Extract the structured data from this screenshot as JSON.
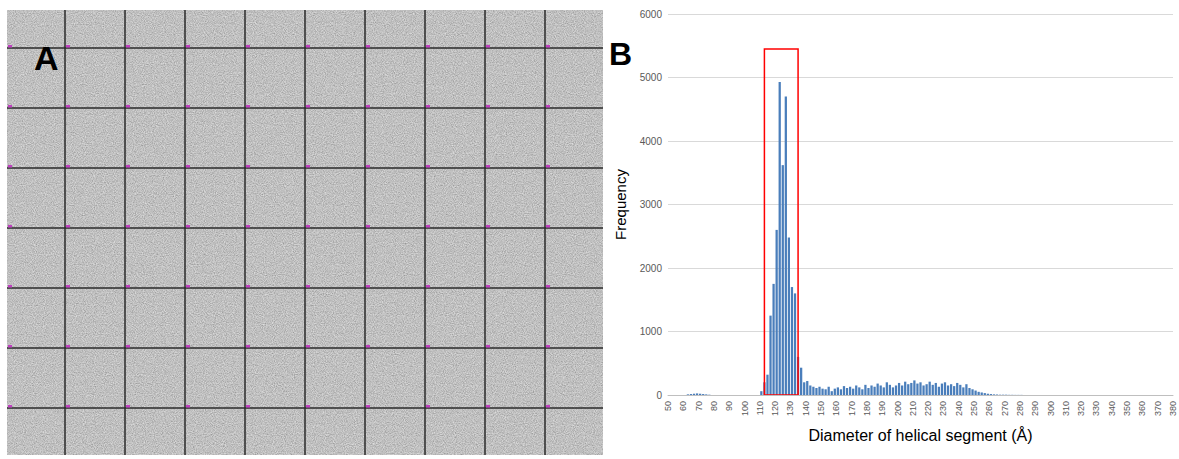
{
  "panel_labels": {
    "a": "A",
    "b": "B"
  },
  "chart_data": {
    "type": "histogram",
    "x_label": "Diameter of helical segment (Å)",
    "y_label": "Frequency",
    "color": "#4a7ebb",
    "bins": [
      60,
      62,
      64,
      66,
      68,
      70,
      72,
      74,
      76,
      78,
      80,
      82,
      84,
      86,
      88,
      90,
      92,
      94,
      96,
      98,
      100,
      102,
      104,
      106,
      108,
      110,
      112,
      114,
      116,
      118,
      120,
      122,
      124,
      126,
      128,
      130,
      132,
      134,
      136,
      138,
      140,
      142,
      144,
      146,
      148,
      150,
      152,
      154,
      156,
      158,
      160,
      162,
      164,
      166,
      168,
      170,
      172,
      174,
      176,
      178,
      180,
      182,
      184,
      186,
      188,
      190,
      192,
      194,
      196,
      198,
      200,
      202,
      204,
      206,
      208,
      210,
      212,
      214,
      216,
      218,
      220,
      222,
      224,
      226,
      228,
      230,
      232,
      234,
      236,
      238,
      240,
      242,
      244,
      246,
      248,
      250,
      252,
      254,
      256,
      258,
      260,
      262,
      264,
      266,
      268,
      270,
      272,
      274,
      276,
      278,
      280,
      282,
      284
    ],
    "counts": [
      0,
      10,
      15,
      20,
      25,
      20,
      15,
      10,
      5,
      0,
      0,
      0,
      0,
      0,
      0,
      0,
      0,
      0,
      0,
      0,
      0,
      0,
      0,
      0,
      0,
      60,
      200,
      320,
      1250,
      1750,
      2600,
      4930,
      3620,
      4700,
      2480,
      1700,
      1600,
      600,
      430,
      200,
      220,
      150,
      130,
      110,
      130,
      100,
      90,
      130,
      60,
      100,
      120,
      90,
      140,
      110,
      130,
      100,
      150,
      120,
      90,
      160,
      110,
      150,
      130,
      180,
      150,
      120,
      200,
      160,
      120,
      150,
      190,
      150,
      210,
      170,
      190,
      230,
      180,
      200,
      150,
      170,
      210,
      160,
      190,
      130,
      180,
      200,
      150,
      170,
      140,
      190,
      160,
      120,
      170,
      110,
      90,
      70,
      50,
      40,
      30,
      20,
      15,
      10,
      8,
      5,
      5,
      5,
      3,
      3,
      2,
      2,
      2,
      0
    ],
    "xlim": [
      50,
      380
    ],
    "xticks": [
      50,
      60,
      70,
      80,
      90,
      100,
      110,
      120,
      130,
      140,
      150,
      160,
      170,
      180,
      190,
      200,
      210,
      220,
      230,
      240,
      250,
      260,
      270,
      280,
      290,
      300,
      310,
      320,
      330,
      340,
      350,
      360,
      370,
      380
    ],
    "ylim": [
      0,
      6000
    ],
    "yticks": [
      0,
      1000,
      2000,
      3000,
      4000,
      5000,
      6000
    ],
    "grid": true,
    "highlight_box": {
      "x": [
        113,
        135
      ],
      "y": [
        0,
        5450
      ],
      "color": "#ff0000"
    }
  }
}
